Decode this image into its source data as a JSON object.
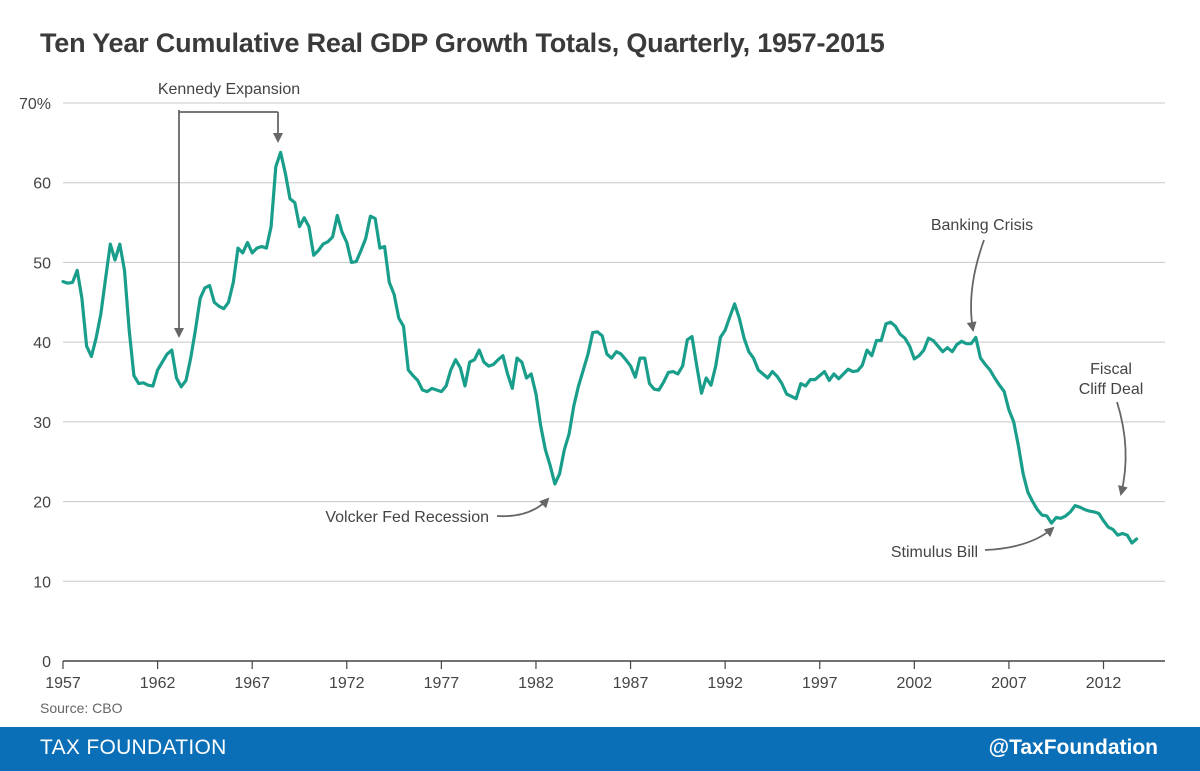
{
  "title": "Ten Year Cumulative Real GDP Growth Totals, Quarterly, 1957-2015",
  "source": "Source: CBO",
  "footer": {
    "brand": "TAX FOUNDATION",
    "handle": "@TaxFoundation"
  },
  "colors": {
    "line": "#1a9e8c",
    "grid": "#c8c8c8",
    "axis": "#444444",
    "footer": "#0b6fb8",
    "annotation": "#666666"
  },
  "chart_data": {
    "type": "line",
    "title": "Ten Year Cumulative Real GDP Growth Totals, Quarterly, 1957-2015",
    "xlabel": "",
    "ylabel": "",
    "xlim": [
      1957,
      2015.25
    ],
    "ylim": [
      0,
      70
    ],
    "y_ticks": [
      0,
      10,
      20,
      30,
      40,
      50,
      60,
      70
    ],
    "y_tick_labels": [
      "0",
      "10",
      "20",
      "30",
      "40",
      "50",
      "60",
      "70%"
    ],
    "x_ticks": [
      1957,
      1962,
      1967,
      1972,
      1977,
      1982,
      1987,
      1992,
      1997,
      2002,
      2007,
      2012
    ],
    "x_tick_labels": [
      "1957",
      "1962",
      "1967",
      "1972",
      "1977",
      "1982",
      "1987",
      "1992",
      "1997",
      "2002",
      "2007",
      "2012"
    ],
    "grid": "horizontal",
    "series": [
      {
        "name": "Ten Year Cumulative Real GDP Growth",
        "points": [
          [
            1957.0,
            47.6
          ],
          [
            1957.25,
            47.4
          ],
          [
            1957.5,
            47.5
          ],
          [
            1957.75,
            49.0
          ],
          [
            1958.0,
            45.5
          ],
          [
            1958.25,
            39.5
          ],
          [
            1958.5,
            38.2
          ],
          [
            1958.75,
            40.5
          ],
          [
            1959.0,
            43.5
          ],
          [
            1959.25,
            48.0
          ],
          [
            1959.5,
            52.3
          ],
          [
            1959.75,
            50.3
          ],
          [
            1960.0,
            52.3
          ],
          [
            1960.25,
            49.0
          ],
          [
            1960.5,
            41.5
          ],
          [
            1960.75,
            35.8
          ],
          [
            1961.0,
            34.8
          ],
          [
            1961.25,
            34.9
          ],
          [
            1961.5,
            34.6
          ],
          [
            1961.75,
            34.5
          ],
          [
            1962.0,
            36.5
          ],
          [
            1962.25,
            37.5
          ],
          [
            1962.5,
            38.5
          ],
          [
            1962.75,
            39.0
          ],
          [
            1963.0,
            35.5
          ],
          [
            1963.25,
            34.4
          ],
          [
            1963.5,
            35.2
          ],
          [
            1963.75,
            38.0
          ],
          [
            1964.0,
            41.5
          ],
          [
            1964.25,
            45.5
          ],
          [
            1964.5,
            46.8
          ],
          [
            1964.75,
            47.1
          ],
          [
            1965.0,
            45.0
          ],
          [
            1965.25,
            44.5
          ],
          [
            1965.5,
            44.2
          ],
          [
            1965.75,
            45.0
          ],
          [
            1966.0,
            47.5
          ],
          [
            1966.25,
            51.8
          ],
          [
            1966.5,
            51.2
          ],
          [
            1966.75,
            52.5
          ],
          [
            1967.0,
            51.2
          ],
          [
            1967.25,
            51.8
          ],
          [
            1967.5,
            52.0
          ],
          [
            1967.75,
            51.8
          ],
          [
            1968.0,
            54.5
          ],
          [
            1968.25,
            62.0
          ],
          [
            1968.5,
            63.8
          ],
          [
            1968.75,
            61.2
          ],
          [
            1969.0,
            58.0
          ],
          [
            1969.25,
            57.5
          ],
          [
            1969.5,
            54.5
          ],
          [
            1969.75,
            55.6
          ],
          [
            1970.0,
            54.5
          ],
          [
            1970.25,
            50.9
          ],
          [
            1970.5,
            51.5
          ],
          [
            1970.75,
            52.3
          ],
          [
            1971.0,
            52.6
          ],
          [
            1971.25,
            53.2
          ],
          [
            1971.5,
            55.9
          ],
          [
            1971.75,
            53.8
          ],
          [
            1972.0,
            52.5
          ],
          [
            1972.25,
            50.0
          ],
          [
            1972.5,
            50.1
          ],
          [
            1972.75,
            51.5
          ],
          [
            1973.0,
            53.0
          ],
          [
            1973.25,
            55.8
          ],
          [
            1973.5,
            55.5
          ],
          [
            1973.75,
            51.8
          ],
          [
            1974.0,
            52.0
          ],
          [
            1974.25,
            47.5
          ],
          [
            1974.5,
            46.0
          ],
          [
            1974.75,
            43.0
          ],
          [
            1975.0,
            42.0
          ],
          [
            1975.25,
            36.5
          ],
          [
            1975.5,
            35.8
          ],
          [
            1975.75,
            35.2
          ],
          [
            1976.0,
            34.0
          ],
          [
            1976.25,
            33.8
          ],
          [
            1976.5,
            34.2
          ],
          [
            1976.75,
            34.0
          ],
          [
            1977.0,
            33.8
          ],
          [
            1977.25,
            34.5
          ],
          [
            1977.5,
            36.5
          ],
          [
            1977.75,
            37.8
          ],
          [
            1978.0,
            36.8
          ],
          [
            1978.25,
            34.5
          ],
          [
            1978.5,
            37.5
          ],
          [
            1978.75,
            37.8
          ],
          [
            1979.0,
            39.0
          ],
          [
            1979.25,
            37.5
          ],
          [
            1979.5,
            37.0
          ],
          [
            1979.75,
            37.2
          ],
          [
            1980.0,
            37.8
          ],
          [
            1980.25,
            38.3
          ],
          [
            1980.5,
            36.0
          ],
          [
            1980.75,
            34.2
          ],
          [
            1981.0,
            38.0
          ],
          [
            1981.25,
            37.5
          ],
          [
            1981.5,
            35.5
          ],
          [
            1981.75,
            36.0
          ],
          [
            1982.0,
            33.5
          ],
          [
            1982.25,
            29.5
          ],
          [
            1982.5,
            26.5
          ],
          [
            1982.75,
            24.5
          ],
          [
            1983.0,
            22.2
          ],
          [
            1983.25,
            23.5
          ],
          [
            1983.5,
            26.5
          ],
          [
            1983.75,
            28.5
          ],
          [
            1984.0,
            32.0
          ],
          [
            1984.25,
            34.5
          ],
          [
            1984.5,
            36.5
          ],
          [
            1984.75,
            38.5
          ],
          [
            1985.0,
            41.2
          ],
          [
            1985.25,
            41.3
          ],
          [
            1985.5,
            40.8
          ],
          [
            1985.75,
            38.5
          ],
          [
            1986.0,
            38.0
          ],
          [
            1986.25,
            38.8
          ],
          [
            1986.5,
            38.5
          ],
          [
            1986.75,
            37.8
          ],
          [
            1987.0,
            37.0
          ],
          [
            1987.25,
            35.6
          ],
          [
            1987.5,
            38.0
          ],
          [
            1987.75,
            38.0
          ],
          [
            1988.0,
            34.8
          ],
          [
            1988.25,
            34.1
          ],
          [
            1988.5,
            34.0
          ],
          [
            1988.75,
            35.0
          ],
          [
            1989.0,
            36.2
          ],
          [
            1989.25,
            36.3
          ],
          [
            1989.5,
            36.0
          ],
          [
            1989.75,
            37.0
          ],
          [
            1990.0,
            40.3
          ],
          [
            1990.25,
            40.7
          ],
          [
            1990.5,
            37.0
          ],
          [
            1990.75,
            33.6
          ],
          [
            1991.0,
            35.5
          ],
          [
            1991.25,
            34.6
          ],
          [
            1991.5,
            37.0
          ],
          [
            1991.75,
            40.6
          ],
          [
            1992.0,
            41.5
          ],
          [
            1992.25,
            43.2
          ],
          [
            1992.5,
            44.8
          ],
          [
            1992.75,
            43.0
          ],
          [
            1993.0,
            40.5
          ],
          [
            1993.25,
            38.8
          ],
          [
            1993.5,
            38.0
          ],
          [
            1993.75,
            36.5
          ],
          [
            1994.0,
            36.0
          ],
          [
            1994.25,
            35.5
          ],
          [
            1994.5,
            36.3
          ],
          [
            1994.75,
            35.7
          ],
          [
            1995.0,
            34.8
          ],
          [
            1995.25,
            33.5
          ],
          [
            1995.5,
            33.2
          ],
          [
            1995.75,
            32.9
          ],
          [
            1996.0,
            34.8
          ],
          [
            1996.25,
            34.5
          ],
          [
            1996.5,
            35.3
          ],
          [
            1996.75,
            35.3
          ],
          [
            1997.0,
            35.8
          ],
          [
            1997.25,
            36.3
          ],
          [
            1997.5,
            35.2
          ],
          [
            1997.75,
            36.0
          ],
          [
            1998.0,
            35.4
          ],
          [
            1998.25,
            36.0
          ],
          [
            1998.5,
            36.6
          ],
          [
            1998.75,
            36.3
          ],
          [
            1999.0,
            36.4
          ],
          [
            1999.25,
            37.1
          ],
          [
            1999.5,
            39.0
          ],
          [
            1999.75,
            38.3
          ],
          [
            2000.0,
            40.2
          ],
          [
            2000.25,
            40.2
          ],
          [
            2000.5,
            42.3
          ],
          [
            2000.75,
            42.5
          ],
          [
            2001.0,
            42.0
          ],
          [
            2001.25,
            41.0
          ],
          [
            2001.5,
            40.5
          ],
          [
            2001.75,
            39.5
          ],
          [
            2002.0,
            37.9
          ],
          [
            2002.25,
            38.3
          ],
          [
            2002.5,
            39.0
          ],
          [
            2002.75,
            40.5
          ],
          [
            2003.0,
            40.2
          ],
          [
            2003.25,
            39.5
          ],
          [
            2003.5,
            38.8
          ],
          [
            2003.75,
            39.3
          ],
          [
            2004.0,
            38.8
          ],
          [
            2004.25,
            39.7
          ],
          [
            2004.5,
            40.1
          ],
          [
            2004.75,
            39.8
          ],
          [
            2005.0,
            39.8
          ],
          [
            2005.25,
            40.6
          ],
          [
            2005.5,
            38.0
          ],
          [
            2005.75,
            37.2
          ],
          [
            2006.0,
            36.5
          ],
          [
            2006.25,
            35.5
          ],
          [
            2006.5,
            34.6
          ],
          [
            2006.75,
            33.8
          ],
          [
            2007.0,
            31.5
          ],
          [
            2007.25,
            30.0
          ],
          [
            2007.5,
            27.0
          ],
          [
            2007.75,
            23.5
          ],
          [
            2008.0,
            21.2
          ],
          [
            2008.25,
            20.0
          ],
          [
            2008.5,
            19.0
          ],
          [
            2008.75,
            18.3
          ],
          [
            2009.0,
            18.2
          ],
          [
            2009.25,
            17.3
          ],
          [
            2009.5,
            18.0
          ],
          [
            2009.75,
            17.9
          ],
          [
            2010.0,
            18.2
          ],
          [
            2010.25,
            18.7
          ],
          [
            2010.5,
            19.5
          ],
          [
            2010.75,
            19.3
          ],
          [
            2011.0,
            19.0
          ],
          [
            2011.25,
            18.8
          ],
          [
            2011.5,
            18.7
          ],
          [
            2011.75,
            18.5
          ],
          [
            2012.0,
            17.6
          ],
          [
            2012.25,
            16.8
          ],
          [
            2012.5,
            16.5
          ],
          [
            2012.75,
            15.8
          ],
          [
            2013.0,
            16.0
          ],
          [
            2013.25,
            15.8
          ],
          [
            2013.5,
            14.8
          ],
          [
            2013.75,
            15.3
          ]
        ]
      }
    ],
    "annotations": [
      {
        "id": "kennedy",
        "text": "Kennedy Expansion"
      },
      {
        "id": "volcker",
        "text": "Volcker Fed Recession"
      },
      {
        "id": "banking",
        "text": "Banking Crisis"
      },
      {
        "id": "fiscal-1",
        "text": "Fiscal"
      },
      {
        "id": "fiscal-2",
        "text": "Cliff Deal"
      },
      {
        "id": "stimulus",
        "text": "Stimulus Bill"
      }
    ]
  }
}
